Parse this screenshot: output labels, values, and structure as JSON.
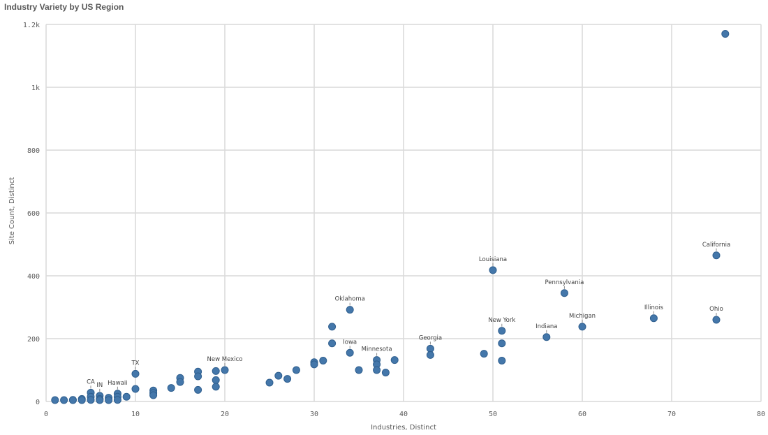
{
  "chart_data": {
    "type": "scatter",
    "title": "Industry Variety by US Region",
    "xlabel": "Industries, Distinct",
    "ylabel": "Site Count, Distinct",
    "xlim": [
      0,
      80
    ],
    "ylim": [
      0,
      1200
    ],
    "x_ticks": [
      0,
      10,
      20,
      30,
      40,
      50,
      60,
      70,
      80
    ],
    "x_tick_labels": [
      "0",
      "10",
      "20",
      "30",
      "40",
      "50",
      "60",
      "70",
      "80"
    ],
    "y_ticks": [
      0,
      200,
      400,
      600,
      800,
      1000,
      1200
    ],
    "y_tick_labels": [
      "0",
      "200",
      "400",
      "600",
      "800",
      "1k",
      "1.2k"
    ],
    "grid": true,
    "marker_color": "#4477aa",
    "marker_edge_color": "#2f5f8f",
    "points": [
      {
        "x": 76,
        "y": 1170,
        "label": ""
      },
      {
        "x": 75,
        "y": 465,
        "label": "California"
      },
      {
        "x": 75,
        "y": 260,
        "label": "Ohio"
      },
      {
        "x": 68,
        "y": 265,
        "label": "Illinois"
      },
      {
        "x": 60,
        "y": 238,
        "label": "Michigan"
      },
      {
        "x": 58,
        "y": 345,
        "label": "Pennsylvania"
      },
      {
        "x": 56,
        "y": 205,
        "label": "Indiana"
      },
      {
        "x": 51,
        "y": 225,
        "label": "New York"
      },
      {
        "x": 51,
        "y": 185,
        "label": ""
      },
      {
        "x": 51,
        "y": 130,
        "label": ""
      },
      {
        "x": 50,
        "y": 418,
        "label": "Louisiana"
      },
      {
        "x": 49,
        "y": 152,
        "label": ""
      },
      {
        "x": 43,
        "y": 168,
        "label": "Georgia"
      },
      {
        "x": 43,
        "y": 148,
        "label": ""
      },
      {
        "x": 39,
        "y": 132,
        "label": ""
      },
      {
        "x": 38,
        "y": 92,
        "label": ""
      },
      {
        "x": 37,
        "y": 132,
        "label": "Minnesota"
      },
      {
        "x": 37,
        "y": 118,
        "label": ""
      },
      {
        "x": 37,
        "y": 100,
        "label": ""
      },
      {
        "x": 35,
        "y": 100,
        "label": ""
      },
      {
        "x": 34,
        "y": 292,
        "label": "Oklahoma"
      },
      {
        "x": 34,
        "y": 155,
        "label": "Iowa"
      },
      {
        "x": 32,
        "y": 238,
        "label": ""
      },
      {
        "x": 32,
        "y": 185,
        "label": ""
      },
      {
        "x": 31,
        "y": 130,
        "label": ""
      },
      {
        "x": 30,
        "y": 125,
        "label": ""
      },
      {
        "x": 30,
        "y": 118,
        "label": ""
      },
      {
        "x": 28,
        "y": 100,
        "label": ""
      },
      {
        "x": 27,
        "y": 72,
        "label": ""
      },
      {
        "x": 26,
        "y": 82,
        "label": ""
      },
      {
        "x": 25,
        "y": 60,
        "label": ""
      },
      {
        "x": 20,
        "y": 100,
        "label": "New Mexico"
      },
      {
        "x": 19,
        "y": 97,
        "label": ""
      },
      {
        "x": 19,
        "y": 68,
        "label": ""
      },
      {
        "x": 19,
        "y": 47,
        "label": ""
      },
      {
        "x": 17,
        "y": 95,
        "label": ""
      },
      {
        "x": 17,
        "y": 80,
        "label": ""
      },
      {
        "x": 17,
        "y": 37,
        "label": ""
      },
      {
        "x": 15,
        "y": 75,
        "label": ""
      },
      {
        "x": 15,
        "y": 62,
        "label": ""
      },
      {
        "x": 14,
        "y": 43,
        "label": ""
      },
      {
        "x": 12,
        "y": 35,
        "label": ""
      },
      {
        "x": 12,
        "y": 27,
        "label": ""
      },
      {
        "x": 12,
        "y": 20,
        "label": ""
      },
      {
        "x": 10,
        "y": 88,
        "label": "TX"
      },
      {
        "x": 10,
        "y": 40,
        "label": ""
      },
      {
        "x": 9,
        "y": 15,
        "label": ""
      },
      {
        "x": 8,
        "y": 25,
        "label": "Hawaii"
      },
      {
        "x": 8,
        "y": 15,
        "label": ""
      },
      {
        "x": 8,
        "y": 5,
        "label": ""
      },
      {
        "x": 7,
        "y": 12,
        "label": ""
      },
      {
        "x": 7,
        "y": 3,
        "label": ""
      },
      {
        "x": 6,
        "y": 18,
        "label": "IN"
      },
      {
        "x": 6,
        "y": 8,
        "label": ""
      },
      {
        "x": 6,
        "y": 2,
        "label": ""
      },
      {
        "x": 5,
        "y": 28,
        "label": "CA"
      },
      {
        "x": 5,
        "y": 15,
        "label": ""
      },
      {
        "x": 5,
        "y": 5,
        "label": ""
      },
      {
        "x": 4,
        "y": 8,
        "label": ""
      },
      {
        "x": 4,
        "y": 2,
        "label": ""
      },
      {
        "x": 3,
        "y": 5,
        "label": ""
      },
      {
        "x": 3,
        "y": 1,
        "label": ""
      },
      {
        "x": 2,
        "y": 3,
        "label": ""
      },
      {
        "x": 1,
        "y": 1,
        "label": ""
      }
    ]
  }
}
